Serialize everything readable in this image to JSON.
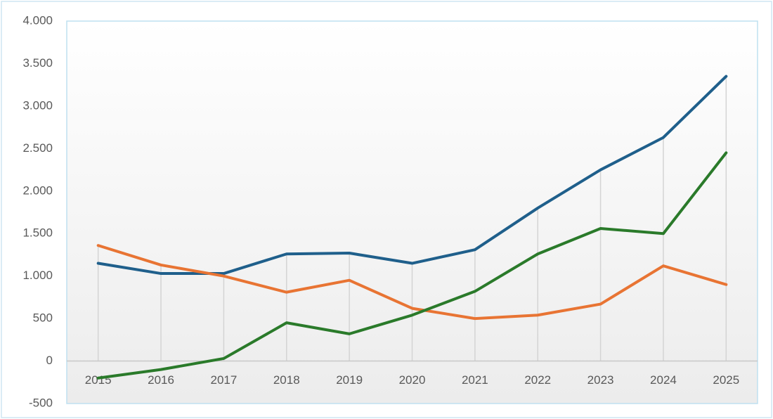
{
  "chart_data": {
    "type": "line",
    "categories": [
      "2015",
      "2016",
      "2017",
      "2018",
      "2019",
      "2020",
      "2021",
      "2022",
      "2023",
      "2024",
      "2025"
    ],
    "series": [
      {
        "color": "#1f5f8b",
        "values": [
          1150,
          1030,
          1030,
          1260,
          1270,
          1150,
          1310,
          1800,
          2250,
          2630,
          3350
        ]
      },
      {
        "color": "#e87433",
        "values": [
          1360,
          1130,
          1000,
          810,
          950,
          620,
          500,
          540,
          670,
          1120,
          900
        ]
      },
      {
        "color": "#2a7a2a",
        "values": [
          -200,
          -100,
          30,
          450,
          320,
          540,
          820,
          1260,
          1560,
          1500,
          2450
        ]
      }
    ],
    "ylim": [
      -500,
      4000
    ],
    "yticks": [
      -500,
      0,
      500,
      {
        "value": 1000,
        "label": "1.000"
      },
      {
        "value": 1500,
        "label": "1.500"
      },
      {
        "value": 2000,
        "label": "2.000"
      },
      {
        "value": 2500,
        "label": "2.500"
      },
      {
        "value": 3000,
        "label": "3.000"
      },
      {
        "value": 3500,
        "label": "3.500"
      },
      {
        "value": 4000,
        "label": "4.000"
      }
    ],
    "drop_lines": true
  }
}
